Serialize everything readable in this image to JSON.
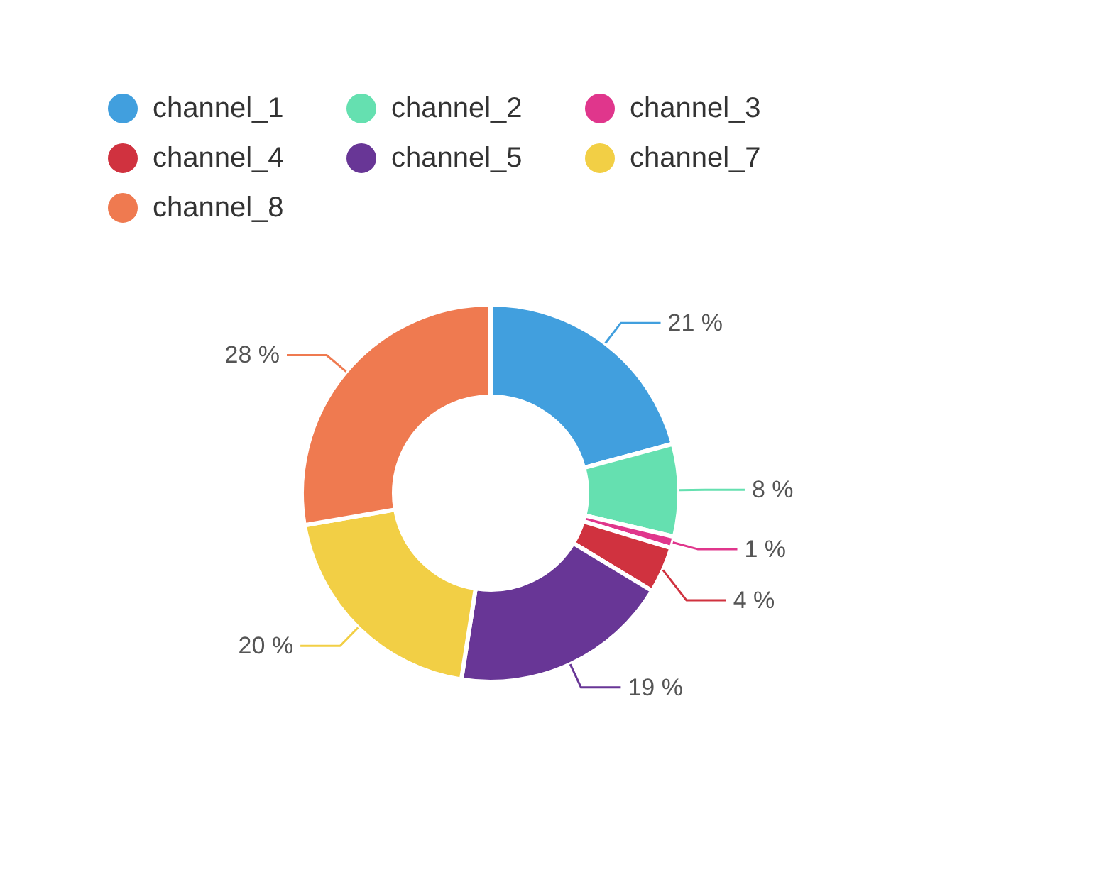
{
  "chart_data": {
    "type": "donut",
    "categories": [
      "channel_1",
      "channel_2",
      "channel_3",
      "channel_4",
      "channel_5",
      "channel_7",
      "channel_8"
    ],
    "values": [
      21,
      8,
      1,
      4,
      19,
      20,
      28
    ],
    "colors": [
      "#419fde",
      "#65e0b0",
      "#e0368c",
      "#d0323f",
      "#683696",
      "#f2cf45",
      "#ef7a50"
    ],
    "value_labels": [
      "21 %",
      "8 %",
      "1 %",
      "4 %",
      "19 %",
      "20 %",
      "28 %"
    ],
    "legend": "top left"
  }
}
